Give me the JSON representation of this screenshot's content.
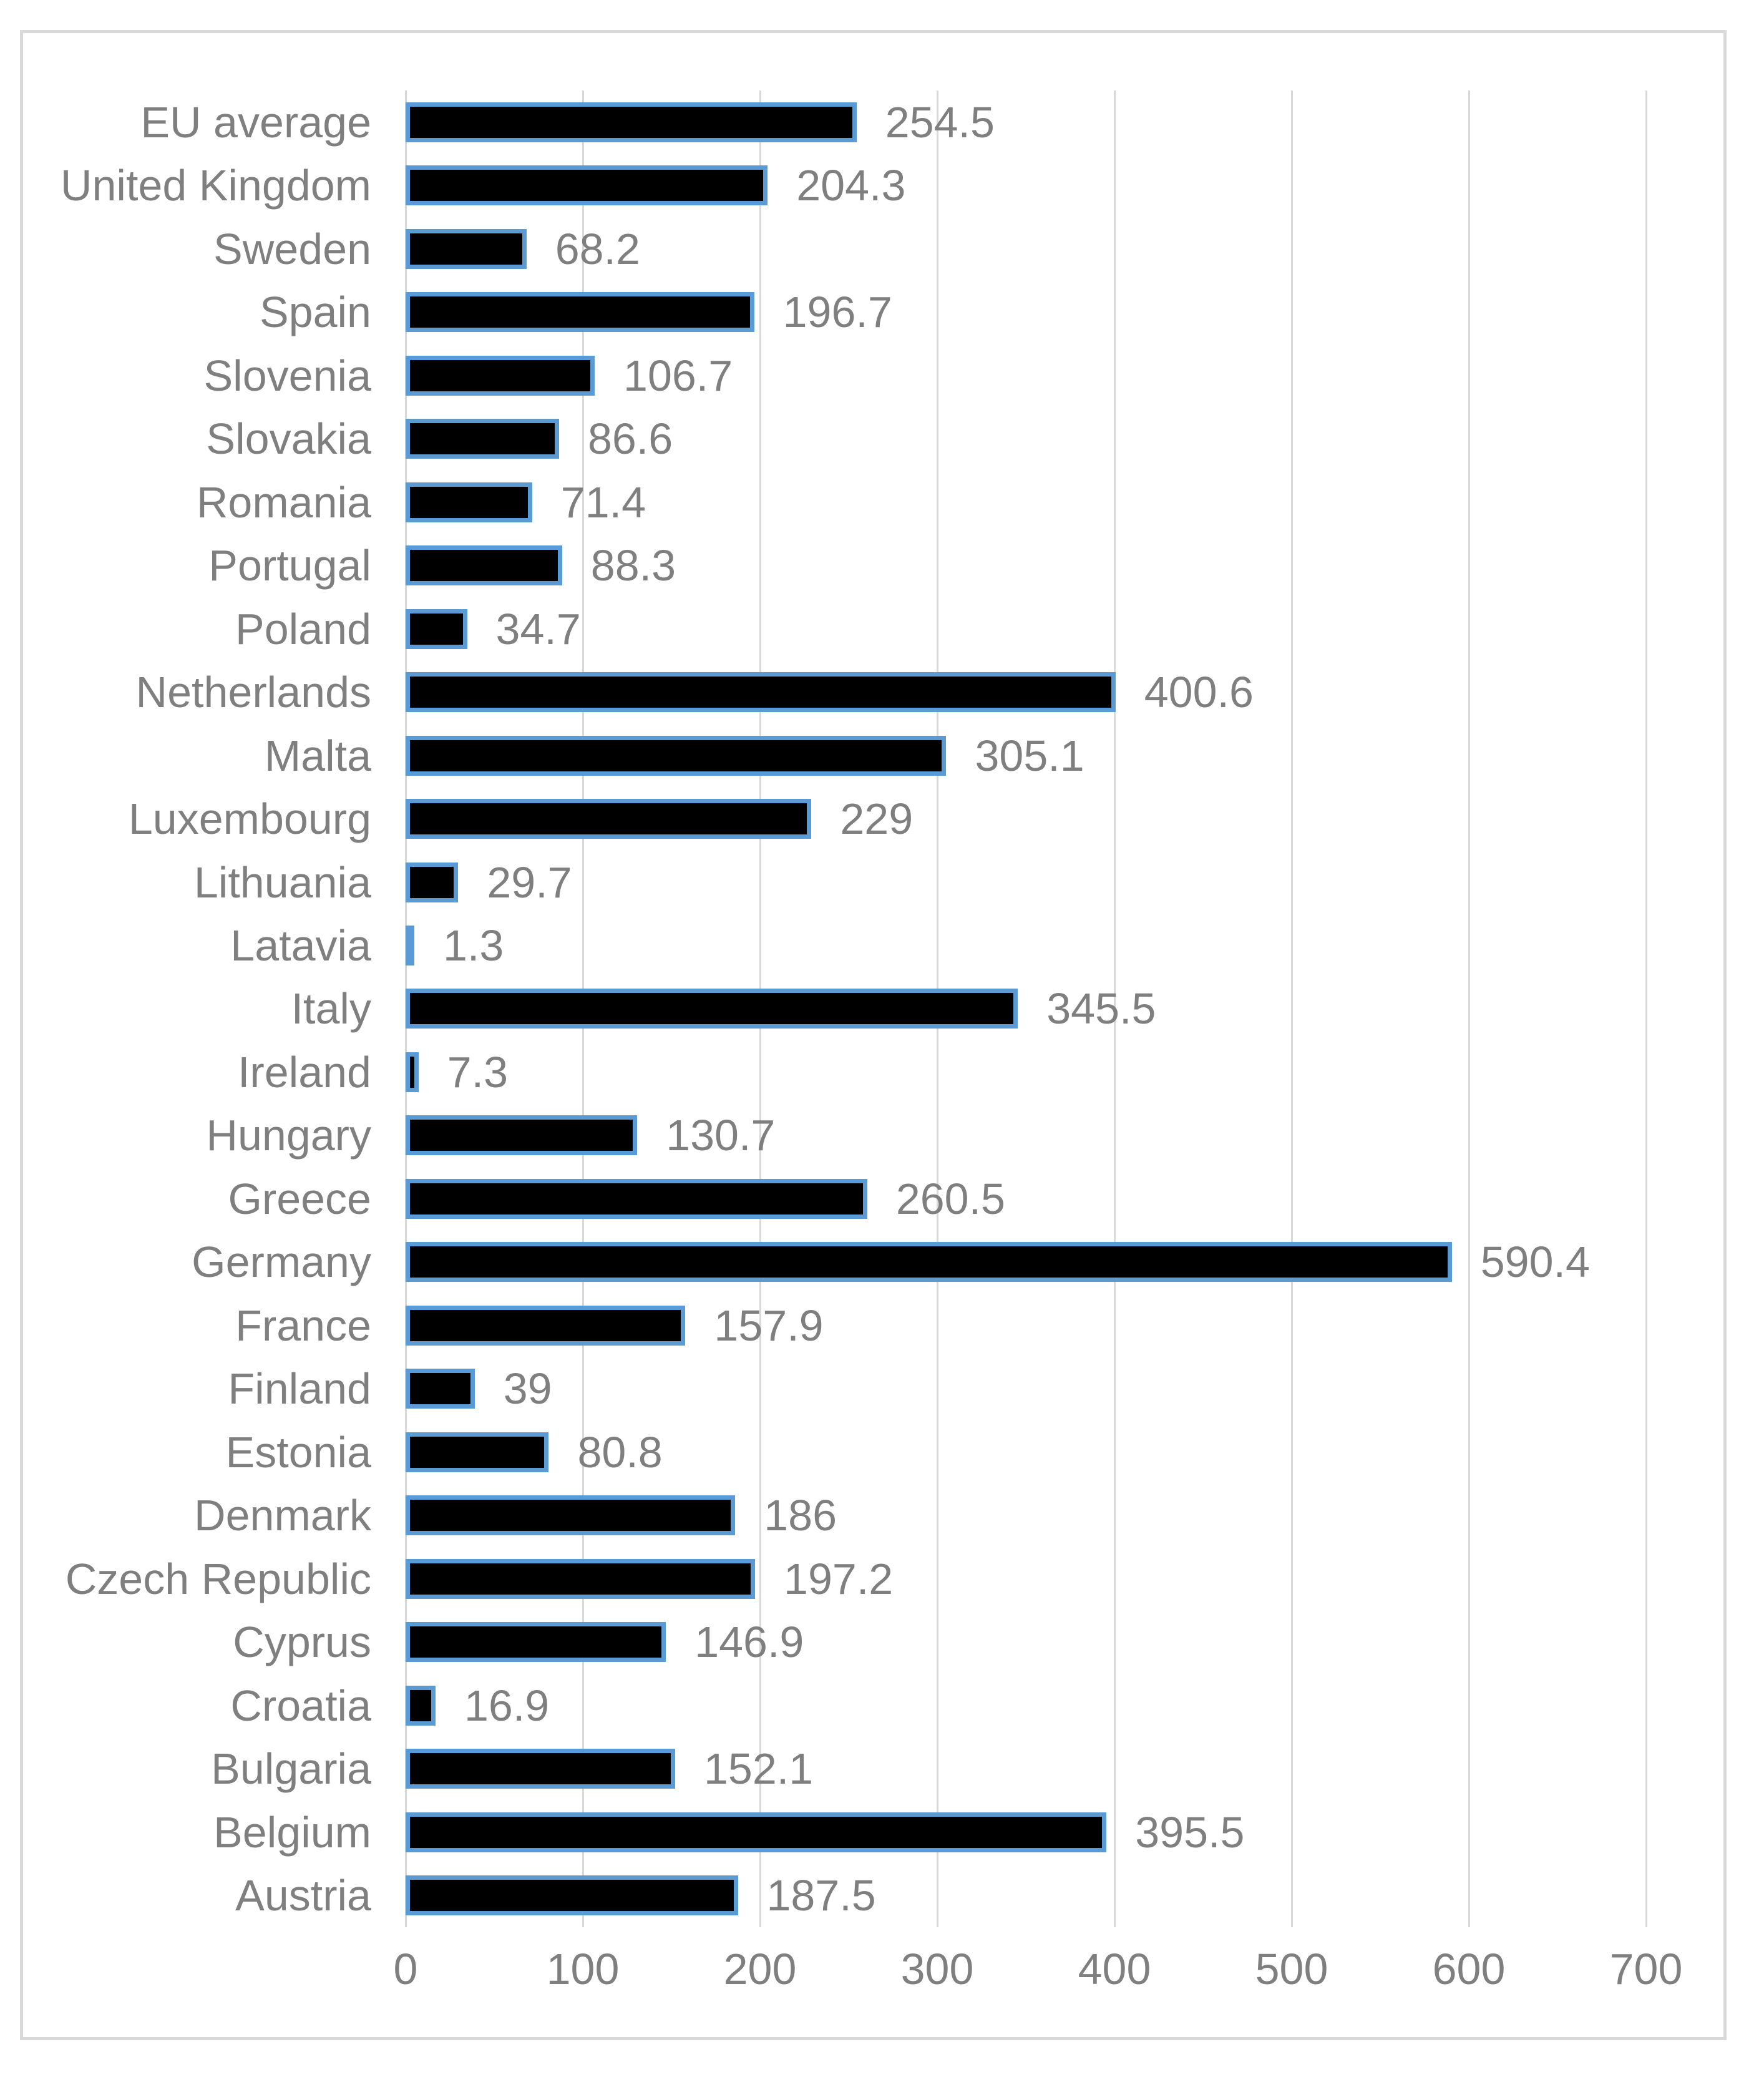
{
  "chart_data": {
    "type": "bar",
    "orientation": "horizontal",
    "title": "",
    "xlabel": "",
    "ylabel": "",
    "categories": [
      "EU average",
      "United Kingdom",
      "Sweden",
      "Spain",
      "Slovenia",
      "Slovakia",
      "Romania",
      "Portugal",
      "Poland",
      "Netherlands",
      "Malta",
      "Luxembourg",
      "Lithuania",
      "Latavia",
      "Italy",
      "Ireland",
      "Hungary",
      "Greece",
      "Germany",
      "France",
      "Finland",
      "Estonia",
      "Denmark",
      "Czech Republic",
      "Cyprus",
      "Croatia",
      "Bulgaria",
      "Belgium",
      "Austria"
    ],
    "values": [
      254.5,
      204.3,
      68.2,
      196.7,
      106.7,
      86.6,
      71.4,
      88.3,
      34.7,
      400.6,
      305.1,
      229,
      29.7,
      1.3,
      345.5,
      7.3,
      130.7,
      260.5,
      590.4,
      157.9,
      39,
      80.8,
      186,
      197.2,
      146.9,
      16.9,
      152.1,
      395.5,
      187.5
    ],
    "value_labels": [
      "254.5",
      "204.3",
      "68.2",
      "196.7",
      "106.7",
      "86.6",
      "71.4",
      "88.3",
      "34.7",
      "400.6",
      "305.1",
      "229",
      "29.7",
      "1.3",
      "345.5",
      "7.3",
      "130.7",
      "260.5",
      "590.4",
      "157.9",
      "39",
      "80.8",
      "186",
      "197.2",
      "146.9",
      "16.9",
      "152.1",
      "395.5",
      "187.5"
    ],
    "xlim": [
      0,
      700
    ],
    "x_ticks": [
      0,
      100,
      200,
      300,
      400,
      500,
      600,
      700
    ],
    "x_tick_labels": [
      "0",
      "100",
      "200",
      "300",
      "400",
      "500",
      "600",
      "700"
    ],
    "grid": true,
    "legend": false,
    "colors": {
      "bar_fill": "#000000",
      "bar_border": "#5B9BD5",
      "label_text": "#7F7F7F",
      "gridline": "#D9D9D9",
      "frame_border": "#D9D9D9",
      "background": "#FFFFFF"
    }
  }
}
